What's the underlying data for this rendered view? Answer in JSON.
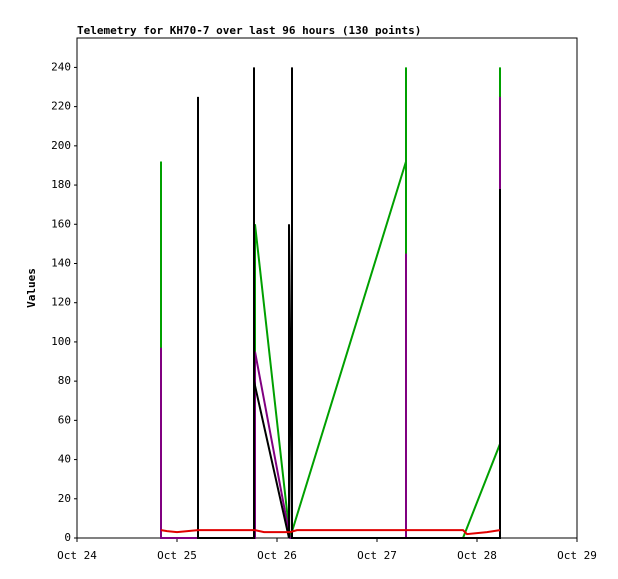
{
  "chart_data": {
    "type": "line",
    "title": "Telemetry for KH70-7 over last 96 hours (130 points)",
    "y_label": "Values",
    "xlim": [
      0,
      5
    ],
    "xticks": [
      {
        "value": 0,
        "label": "Oct 24"
      },
      {
        "value": 1,
        "label": "Oct 25"
      },
      {
        "value": 2,
        "label": "Oct 26"
      },
      {
        "value": 3,
        "label": "Oct 27"
      },
      {
        "value": 4,
        "label": "Oct 28"
      },
      {
        "value": 5,
        "label": "Oct 29"
      }
    ],
    "ylim": [
      0,
      255
    ],
    "yticks": [
      0,
      20,
      40,
      60,
      80,
      100,
      120,
      140,
      160,
      180,
      200,
      220,
      240
    ],
    "grid": false,
    "series": [
      {
        "color": "#00a000",
        "x": [
          0.84,
          0.84,
          0.84,
          1.21,
          1.21,
          1.21,
          1.78,
          1.78,
          2.13,
          3.29,
          3.29,
          3.29,
          3.86,
          4.23,
          4.23,
          4.23
        ],
        "values": [
          0,
          192,
          0,
          0,
          160,
          0,
          0,
          160,
          0,
          192,
          240,
          0,
          0,
          48,
          240,
          0
        ]
      },
      {
        "color": "#800080",
        "x": [
          0.84,
          0.84,
          0.84,
          1.78,
          1.78,
          2.13,
          3.29,
          3.29,
          3.29,
          4.23,
          4.23,
          4.23
        ],
        "values": [
          0,
          97,
          0,
          0,
          95,
          0,
          0,
          145,
          0,
          0,
          225,
          0
        ]
      },
      {
        "color": "#000000",
        "x": [
          1.21,
          1.21,
          1.21,
          1.77,
          1.77,
          1.77,
          2.12,
          2.12,
          2.15,
          2.15,
          2.15,
          4.23,
          4.23,
          4.23
        ],
        "values": [
          0,
          225,
          0,
          0,
          240,
          80,
          0,
          160,
          0,
          240,
          0,
          0,
          178,
          0
        ]
      },
      {
        "color": "#e00000",
        "x": [
          0.84,
          0.9,
          1.0,
          1.21,
          1.78,
          1.87,
          2.13,
          2.2,
          3.86,
          3.9,
          4.1,
          4.23
        ],
        "values": [
          4,
          3.5,
          3,
          4,
          4,
          3,
          3,
          4,
          4,
          2,
          3,
          4
        ]
      }
    ]
  }
}
